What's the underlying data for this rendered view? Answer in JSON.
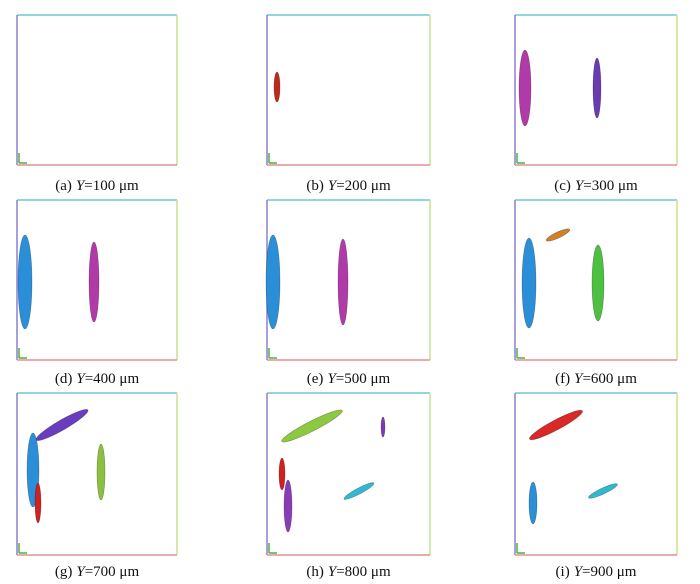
{
  "panels": [
    {
      "label": "(a)",
      "variable": "Y",
      "value": "=100 μm"
    },
    {
      "label": "(b)",
      "variable": "Y",
      "value": "=200 μm"
    },
    {
      "label": "(c)",
      "variable": "Y",
      "value": "=300 μm"
    },
    {
      "label": "(d)",
      "variable": "Y",
      "value": "=400 μm"
    },
    {
      "label": "(e)",
      "variable": "Y",
      "value": "=500 μm"
    },
    {
      "label": "(f)",
      "variable": "Y",
      "value": "=600 μm"
    },
    {
      "label": "(g)",
      "variable": "Y",
      "value": "=700 μm"
    },
    {
      "label": "(h)",
      "variable": "Y",
      "value": "=800 μm"
    },
    {
      "label": "(i)",
      "variable": "Y",
      "value": "=900 μm"
    }
  ]
}
